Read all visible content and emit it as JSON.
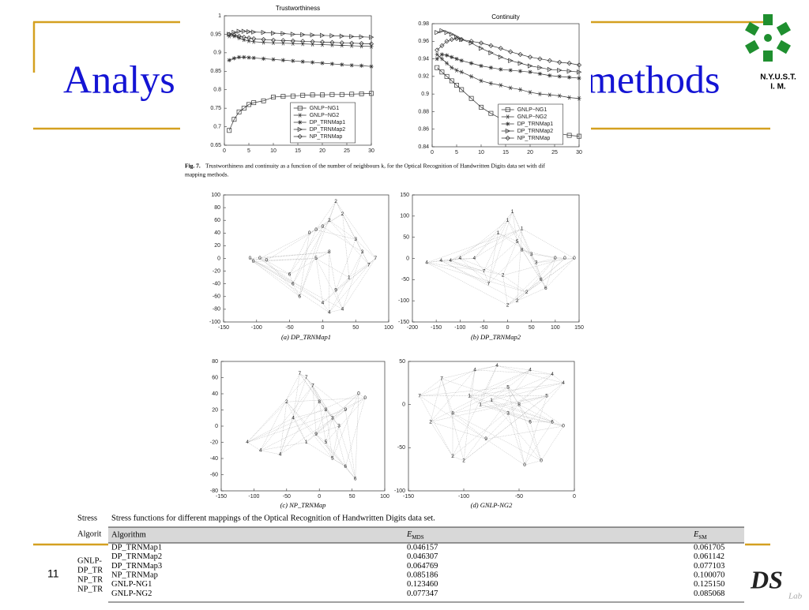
{
  "slide": {
    "title_left": "Analys",
    "title_right": "methods",
    "logo_text": [
      "N.Y.U.S.T.",
      "I. M."
    ],
    "page_number": "11",
    "footer_logo": "DS",
    "footer_logo_sub": "Lab"
  },
  "figure_caption": {
    "label": "Fig. 7.",
    "lines": [
      "Trustworthiness and continuity as a function of the number of neighbours k, for the Optical Recognition of Handwritten Digits data set with dif",
      "mapping methods."
    ]
  },
  "chart_data": [
    {
      "type": "line",
      "title": "Trustworthiness",
      "x": [
        1,
        2,
        3,
        4,
        5,
        6,
        8,
        10,
        12,
        14,
        16,
        18,
        20,
        22,
        24,
        26,
        28,
        30
      ],
      "xlim": [
        0,
        30
      ],
      "xticks": [
        0,
        5,
        10,
        15,
        20,
        25,
        30
      ],
      "ylim": [
        0.65,
        1
      ],
      "yticks": [
        0.65,
        0.7,
        0.75,
        0.8,
        0.85,
        0.9,
        0.95,
        1
      ],
      "series": [
        {
          "name": "GNLP−NG1",
          "color": "#333333",
          "marker": "square",
          "values": [
            0.69,
            0.72,
            0.74,
            0.75,
            0.76,
            0.765,
            0.77,
            0.78,
            0.782,
            0.783,
            0.785,
            0.786,
            0.786,
            0.787,
            0.787,
            0.788,
            0.789,
            0.79
          ]
        },
        {
          "name": "GNLP−NG2",
          "color": "#333333",
          "marker": "star",
          "values": [
            0.945,
            0.945,
            0.94,
            0.935,
            0.932,
            0.93,
            0.928,
            0.927,
            0.926,
            0.925,
            0.924,
            0.923,
            0.922,
            0.921,
            0.92,
            0.919,
            0.918,
            0.917
          ]
        },
        {
          "name": "DP_TRNMap1",
          "color": "#333333",
          "marker": "plus",
          "values": [
            0.88,
            0.885,
            0.888,
            0.888,
            0.887,
            0.886,
            0.884,
            0.882,
            0.88,
            0.878,
            0.876,
            0.874,
            0.872,
            0.87,
            0.868,
            0.866,
            0.865,
            0.863
          ]
        },
        {
          "name": "DP_TRNMap2",
          "color": "#333333",
          "marker": "triangle",
          "values": [
            0.95,
            0.955,
            0.958,
            0.958,
            0.957,
            0.956,
            0.955,
            0.953,
            0.952,
            0.95,
            0.949,
            0.948,
            0.947,
            0.946,
            0.945,
            0.944,
            0.943,
            0.942
          ]
        },
        {
          "name": "NP_TRNMap",
          "color": "#333333",
          "marker": "diamond",
          "values": [
            0.95,
            0.948,
            0.945,
            0.942,
            0.94,
            0.938,
            0.936,
            0.934,
            0.933,
            0.932,
            0.931,
            0.93,
            0.929,
            0.928,
            0.927,
            0.926,
            0.925,
            0.924
          ]
        }
      ]
    },
    {
      "type": "line",
      "title": "Continuity",
      "x": [
        1,
        2,
        3,
        4,
        5,
        6,
        8,
        10,
        12,
        14,
        16,
        18,
        20,
        22,
        24,
        26,
        28,
        30
      ],
      "xlim": [
        0,
        30
      ],
      "xticks": [
        0,
        5,
        10,
        15,
        20,
        25,
        30
      ],
      "ylim": [
        0.84,
        0.98
      ],
      "yticks": [
        0.84,
        0.86,
        0.88,
        0.9,
        0.92,
        0.94,
        0.96,
        0.98
      ],
      "series": [
        {
          "name": "GNLP−NG1",
          "color": "#333333",
          "marker": "square",
          "values": [
            0.93,
            0.925,
            0.92,
            0.915,
            0.91,
            0.905,
            0.895,
            0.885,
            0.878,
            0.872,
            0.866,
            0.862,
            0.86,
            0.858,
            0.857,
            0.855,
            0.853,
            0.852
          ]
        },
        {
          "name": "GNLP−NG2",
          "color": "#333333",
          "marker": "star",
          "values": [
            0.945,
            0.94,
            0.935,
            0.93,
            0.927,
            0.925,
            0.92,
            0.915,
            0.912,
            0.91,
            0.907,
            0.905,
            0.902,
            0.9,
            0.899,
            0.898,
            0.896,
            0.895
          ]
        },
        {
          "name": "DP_TRNMap1",
          "color": "#333333",
          "marker": "plus",
          "values": [
            0.94,
            0.945,
            0.944,
            0.942,
            0.94,
            0.938,
            0.935,
            0.932,
            0.93,
            0.928,
            0.927,
            0.926,
            0.925,
            0.923,
            0.921,
            0.92,
            0.919,
            0.918
          ]
        },
        {
          "name": "DP_TRNMap2",
          "color": "#333333",
          "marker": "triangle",
          "values": [
            0.97,
            0.972,
            0.97,
            0.968,
            0.965,
            0.962,
            0.958,
            0.952,
            0.947,
            0.942,
            0.938,
            0.935,
            0.932,
            0.93,
            0.928,
            0.927,
            0.926,
            0.925
          ]
        },
        {
          "name": "NP_TRNMap",
          "color": "#333333",
          "marker": "diamond",
          "values": [
            0.95,
            0.955,
            0.96,
            0.962,
            0.963,
            0.962,
            0.96,
            0.958,
            0.955,
            0.952,
            0.948,
            0.945,
            0.942,
            0.94,
            0.938,
            0.936,
            0.935,
            0.933
          ]
        }
      ]
    },
    {
      "type": "scatter",
      "caption": "(a) DP_TRNMap1",
      "xlim": [
        -150,
        100
      ],
      "xticks": [
        -150,
        -100,
        -50,
        0,
        50,
        100
      ],
      "ylim": [
        -100,
        100
      ],
      "yticks": [
        -100,
        -80,
        -60,
        -40,
        -20,
        0,
        20,
        40,
        60,
        80,
        100
      ],
      "x": [
        -110,
        -105,
        -95,
        -85,
        -50,
        -45,
        -35,
        -20,
        -10,
        0,
        10,
        20,
        30,
        50,
        60,
        70,
        80,
        40,
        20,
        30,
        10,
        0,
        -10,
        10
      ],
      "y": [
        0,
        -5,
        0,
        -3,
        -25,
        -40,
        -60,
        40,
        45,
        50,
        60,
        90,
        70,
        30,
        10,
        -10,
        0,
        -30,
        -50,
        -80,
        -85,
        -70,
        0,
        10
      ],
      "labels": [
        "0",
        "0",
        "0",
        "0",
        "6",
        "6",
        "6",
        "0",
        "0",
        "0",
        "2",
        "2",
        "2",
        "3",
        "3",
        "7",
        "7",
        "1",
        "9",
        "4",
        "4",
        "4",
        "5",
        "8"
      ]
    },
    {
      "type": "scatter",
      "caption": "(b) DP_TRNMap2",
      "xlim": [
        -200,
        150
      ],
      "xticks": [
        -200,
        -150,
        -100,
        -50,
        0,
        50,
        100,
        150
      ],
      "ylim": [
        -150,
        150
      ],
      "yticks": [
        -150,
        -100,
        -50,
        0,
        50,
        100,
        150
      ],
      "x": [
        -170,
        -140,
        -120,
        -100,
        -70,
        -50,
        -40,
        -20,
        0,
        10,
        20,
        30,
        50,
        60,
        70,
        80,
        100,
        120,
        140,
        0,
        20,
        40,
        -10,
        30
      ],
      "y": [
        -10,
        -5,
        -5,
        0,
        0,
        -30,
        -60,
        60,
        90,
        110,
        40,
        20,
        10,
        -10,
        -50,
        -70,
        0,
        0,
        0,
        -110,
        -100,
        -80,
        -40,
        70
      ],
      "labels": [
        "4",
        "4",
        "4",
        "4",
        "4",
        "7",
        "7",
        "1",
        "1",
        "1",
        "5",
        "8",
        "3",
        "3",
        "6",
        "6",
        "0",
        "0",
        "0",
        "2",
        "2",
        "2",
        "2",
        "1"
      ]
    },
    {
      "type": "scatter",
      "caption": "(c) NP_TRNMap",
      "xlim": [
        -150,
        100
      ],
      "xticks": [
        -150,
        -100,
        -50,
        0,
        50,
        100
      ],
      "ylim": [
        -80,
        80
      ],
      "yticks": [
        -80,
        -60,
        -40,
        -20,
        0,
        20,
        40,
        60,
        80
      ],
      "x": [
        -110,
        -90,
        -60,
        -40,
        -30,
        -20,
        -10,
        0,
        10,
        20,
        30,
        -5,
        10,
        20,
        40,
        55,
        60,
        70,
        -50,
        -20,
        40
      ],
      "y": [
        -20,
        -30,
        -35,
        10,
        65,
        60,
        50,
        30,
        20,
        10,
        0,
        -10,
        -20,
        -40,
        -50,
        -65,
        40,
        35,
        30,
        -20,
        20
      ],
      "labels": [
        "4",
        "4",
        "4",
        "4",
        "7",
        "7",
        "7",
        "8",
        "8",
        "3",
        "3",
        "9",
        "5",
        "5",
        "6",
        "6",
        "0",
        "0",
        "2",
        "1",
        "9"
      ]
    },
    {
      "type": "scatter",
      "caption": "(d) GNLP-NG2",
      "xlim": [
        -150,
        0
      ],
      "xticks": [
        -150,
        -100,
        -50,
        0
      ],
      "ylim": [
        -100,
        50
      ],
      "yticks": [
        -100,
        -50,
        0,
        50
      ],
      "x": [
        -140,
        -120,
        -130,
        -110,
        -100,
        -90,
        -70,
        -40,
        -20,
        -10,
        -95,
        -85,
        -75,
        -60,
        -40,
        -20,
        -10,
        -30,
        -45,
        -60,
        -50,
        -80,
        -110,
        -25
      ],
      "y": [
        10,
        30,
        -20,
        -60,
        -65,
        40,
        45,
        40,
        35,
        25,
        10,
        0,
        5,
        -10,
        -20,
        -20,
        -25,
        -65,
        -70,
        20,
        0,
        -40,
        -10,
        10
      ],
      "labels": [
        "7",
        "7",
        "2",
        "2",
        "2",
        "4",
        "4",
        "4",
        "4",
        "4",
        "1",
        "1",
        "1",
        "3",
        "6",
        "6",
        "0",
        "0",
        "0",
        "5",
        "8",
        "9",
        "8",
        "5"
      ]
    }
  ],
  "table": {
    "caption": "Stress functions for different mappings of the Optical Recognition of Handwritten Digits data set.",
    "header": [
      "Algorithm",
      {
        "symbol": "E",
        "sub": "MDS"
      },
      {
        "symbol": "E",
        "sub": "SM"
      }
    ],
    "rows": [
      [
        "DP_TRNMap1",
        "0.046157",
        "0.061705"
      ],
      [
        "DP_TRNMap2",
        "0.046307",
        "0.061142"
      ],
      [
        "DP_TRNMap3",
        "0.064769",
        "0.077103"
      ],
      [
        "NP_TRNMap",
        "0.085186",
        "0.100070"
      ],
      [
        "GNLP-NG1",
        "0.123460",
        "0.125150"
      ],
      [
        "GNLP-NG2",
        "0.077347",
        "0.085068"
      ]
    ]
  },
  "hidden_table": {
    "caption": "Stress",
    "header": "Algorit",
    "rows": [
      "GNLP-",
      "DP_TR",
      "NP_TR",
      "NP_TR"
    ]
  }
}
